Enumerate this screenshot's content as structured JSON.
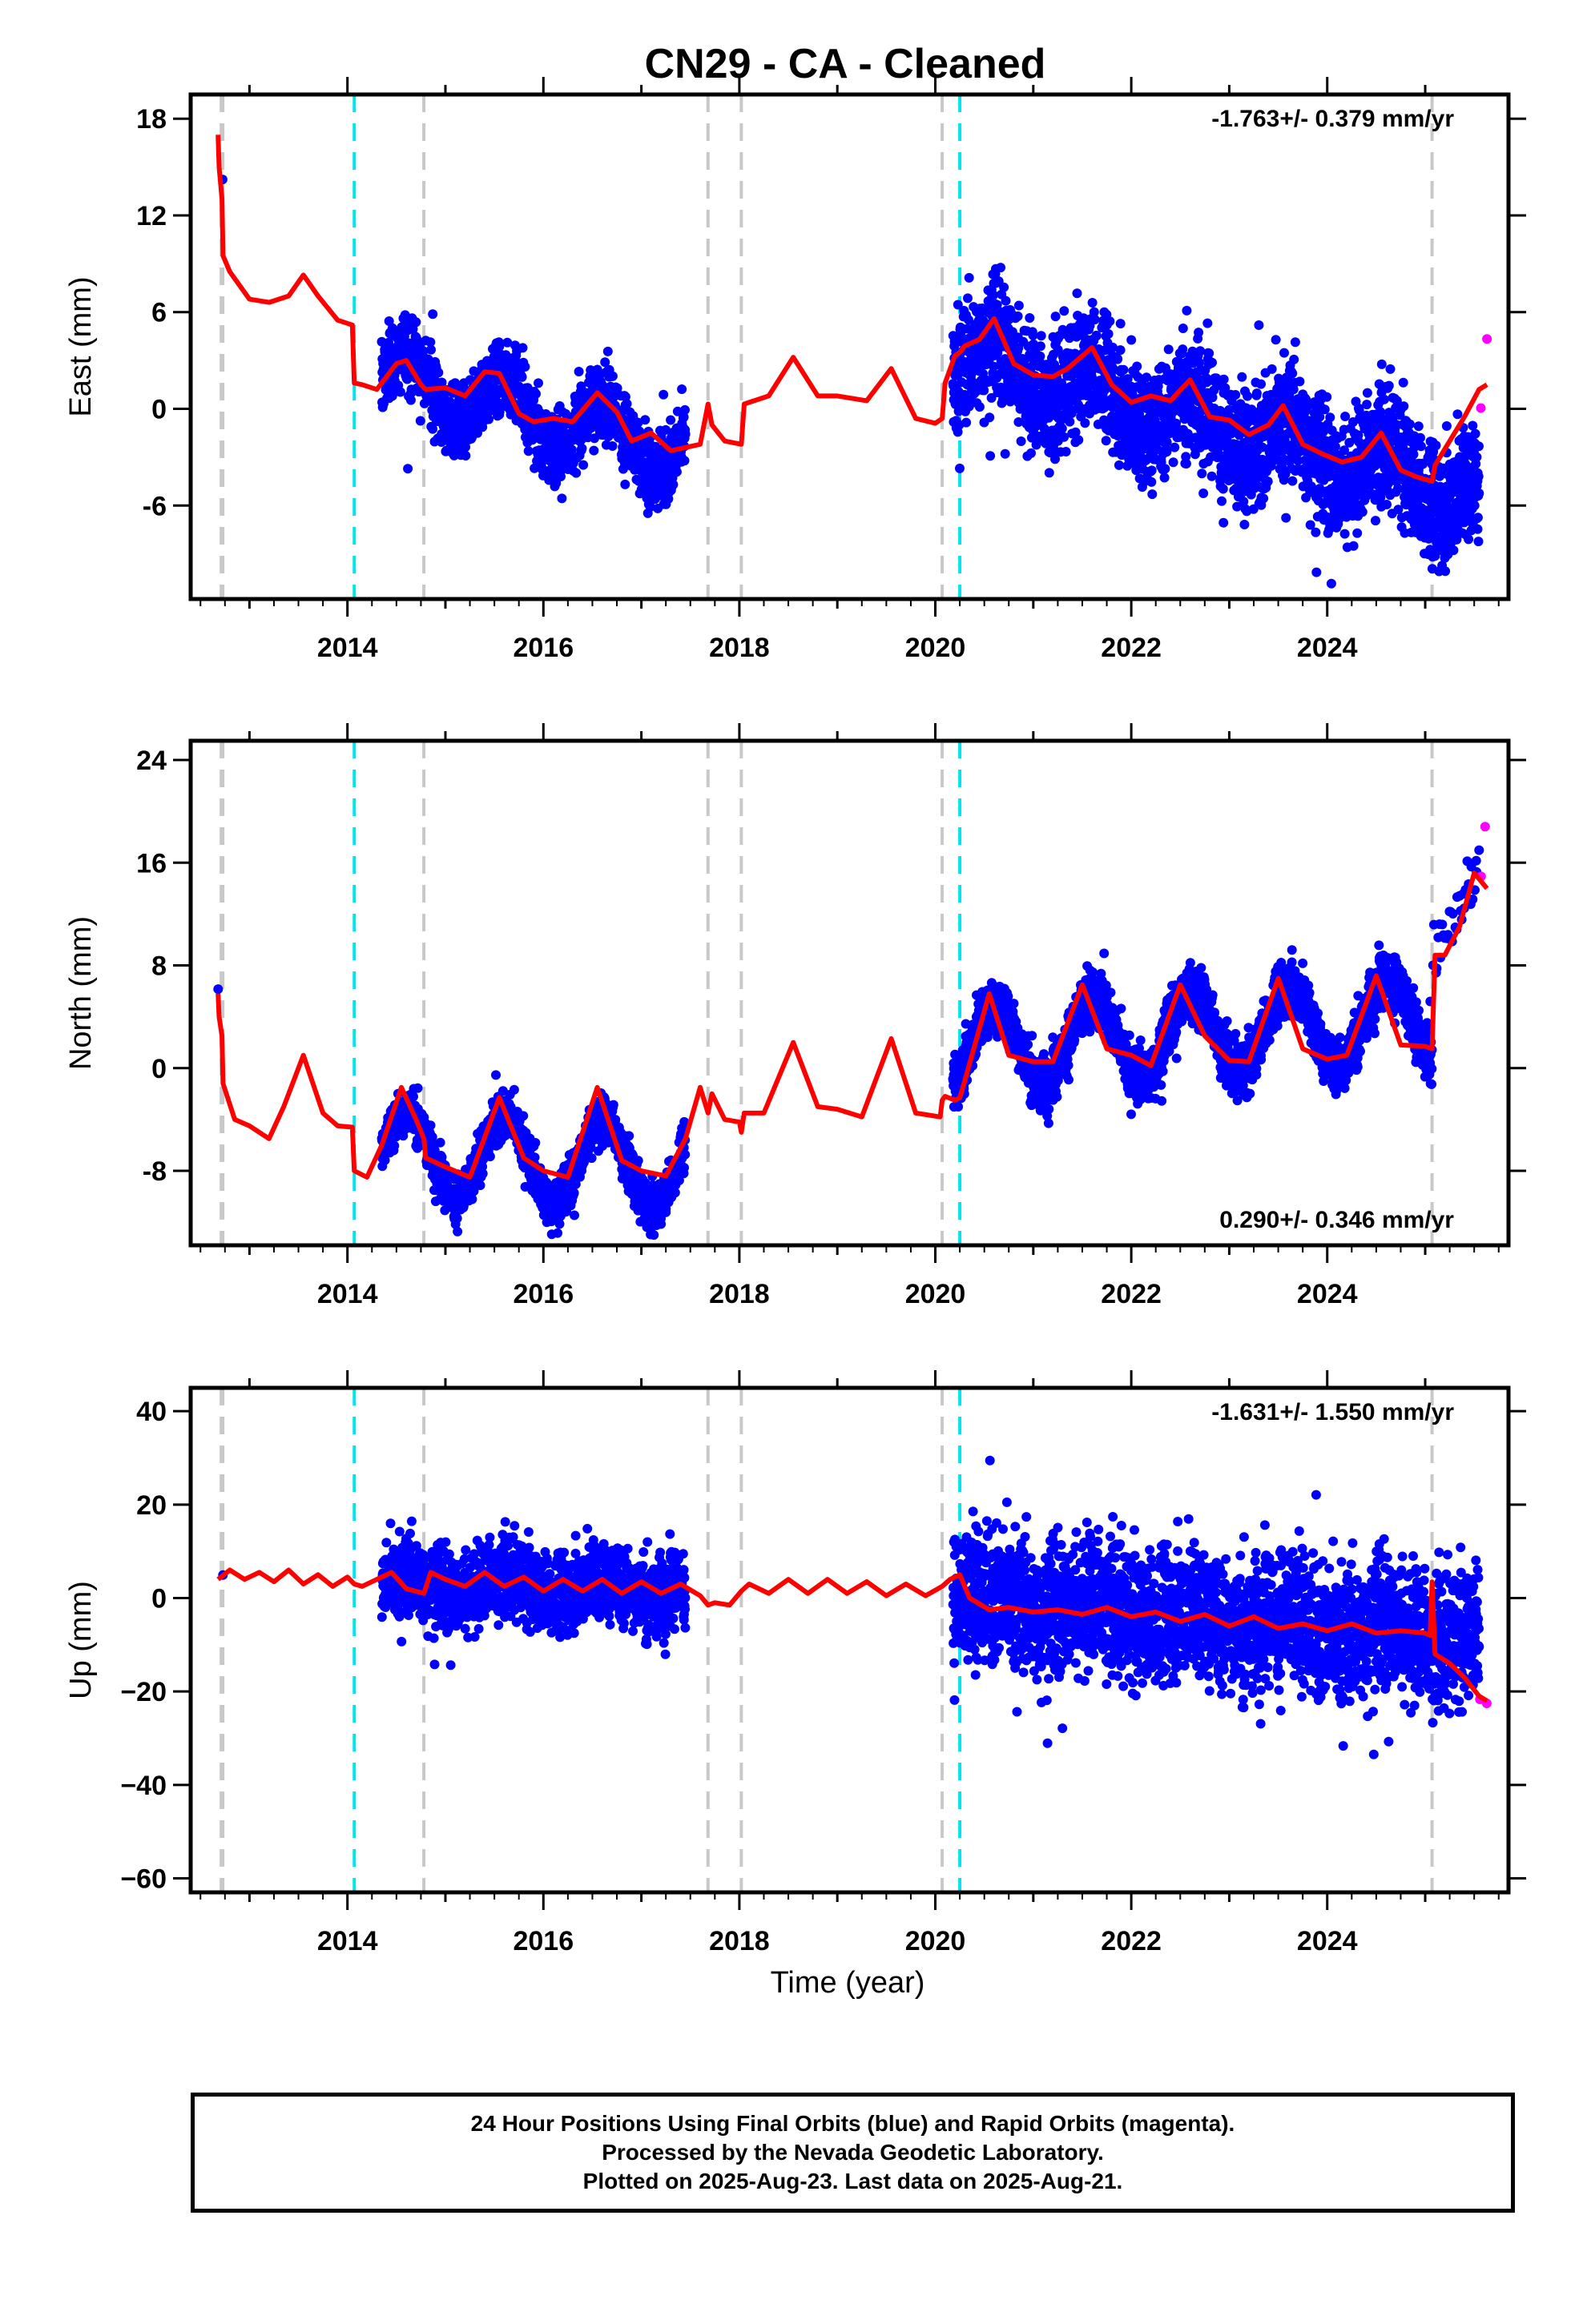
{
  "title": "CN29  - CA - Cleaned",
  "x_axis_label": "Time (year)",
  "caption": {
    "line1": "24 Hour Positions Using Final Orbits (blue) and Rapid Orbits (magenta).",
    "line2": "Processed by the Nevada Geodetic Laboratory.",
    "line3": "Plotted on 2025-Aug-23. Last data on 2025-Aug-21."
  },
  "colors": {
    "final_orbits": "#0000ff",
    "rapid_orbits": "#ff00ff",
    "model": "#ff0000",
    "equipment_change": "#c8c8c8",
    "earthquake": "#00e5ee"
  },
  "chart_data": [
    {
      "type": "scatter",
      "panel": "east",
      "ylabel": "East (mm)",
      "rate_text": "-1.763+/- 0.379 mm/yr",
      "rate_position": "top-right",
      "xlim": [
        2012.4,
        2025.85
      ],
      "ylim": [
        -11.8,
        19.5
      ],
      "xticks": [
        2014,
        2016,
        2018,
        2020,
        2022,
        2024
      ],
      "xtick_labels": [
        "2014",
        "2016",
        "2018",
        "2020",
        "2022",
        "2024"
      ],
      "yticks": [
        -6,
        0,
        6,
        12,
        18
      ],
      "ytick_labels": [
        "-6",
        "0",
        "6",
        "12",
        "18"
      ],
      "grid": false,
      "equipment_change_lines": [
        2012.72,
        2014.78,
        2017.68,
        2018.02,
        2020.07,
        2025.07
      ],
      "earthquake_lines": [
        2014.07,
        2020.25
      ],
      "segments": [
        {
          "t0": 2012.68,
          "t1": 2012.75,
          "offset": 17.0,
          "trend": -80,
          "amp": 0,
          "density": 8,
          "noise": 1.2,
          "rapid": false
        },
        {
          "t0": 2014.35,
          "t1": 2017.45,
          "offset": 2.0,
          "trend": -1.5,
          "amp": 1.8,
          "phase": 0.55,
          "density": 480,
          "noise": 1.6,
          "rapid": false
        },
        {
          "t0": 2020.18,
          "t1": 2025.55,
          "offset": 3.5,
          "trend": -1.65,
          "amp": 1.5,
          "phase": 0.55,
          "density": 520,
          "noise": 2.6,
          "rapid": false
        },
        {
          "t0": 2025.55,
          "t1": 2025.63,
          "offset": 2.0,
          "trend": 0,
          "amp": 0,
          "density": 25,
          "noise": 2.8,
          "rapid": true
        }
      ],
      "model_line": {
        "x": [
          2012.68,
          2012.69,
          2012.72,
          2012.73,
          2012.8,
          2013.0,
          2013.2,
          2013.4,
          2013.55,
          2013.7,
          2013.9,
          2014.05,
          2014.07,
          2014.15,
          2014.3,
          2014.5,
          2014.6,
          2014.75,
          2014.8,
          2015.0,
          2015.2,
          2015.4,
          2015.55,
          2015.75,
          2015.9,
          2016.1,
          2016.3,
          2016.55,
          2016.75,
          2016.9,
          2017.1,
          2017.3,
          2017.45,
          2017.6,
          2017.68,
          2017.72,
          2017.85,
          2018.02,
          2018.05,
          2018.3,
          2018.55,
          2018.8,
          2019.0,
          2019.3,
          2019.55,
          2019.8,
          2020.0,
          2020.07,
          2020.1,
          2020.2,
          2020.25,
          2020.3,
          2020.45,
          2020.6,
          2020.8,
          2021.0,
          2021.2,
          2021.35,
          2021.6,
          2021.8,
          2022.0,
          2022.2,
          2022.4,
          2022.6,
          2022.8,
          2023.0,
          2023.2,
          2023.4,
          2023.55,
          2023.75,
          2023.95,
          2024.15,
          2024.35,
          2024.55,
          2024.75,
          2024.9,
          2025.07,
          2025.1,
          2025.25,
          2025.4,
          2025.55,
          2025.63
        ],
        "y": [
          17.0,
          15.0,
          13.0,
          9.5,
          8.5,
          6.8,
          6.6,
          7.0,
          8.3,
          7.0,
          5.5,
          5.2,
          1.6,
          1.5,
          1.2,
          2.8,
          3.0,
          1.5,
          1.2,
          1.3,
          0.8,
          2.3,
          2.2,
          -0.3,
          -0.8,
          -0.6,
          -0.8,
          1.0,
          -0.2,
          -2.0,
          -1.5,
          -2.6,
          -2.4,
          -2.2,
          0.3,
          -1.0,
          -2.0,
          -2.2,
          0.3,
          0.8,
          3.2,
          0.8,
          0.8,
          0.5,
          2.5,
          -0.6,
          -0.9,
          -0.6,
          1.6,
          3.3,
          3.5,
          3.9,
          4.3,
          5.6,
          2.8,
          2.1,
          2.0,
          2.5,
          3.8,
          1.5,
          0.4,
          0.8,
          0.5,
          1.8,
          -0.5,
          -0.7,
          -1.6,
          -1.0,
          0.2,
          -2.2,
          -2.8,
          -3.3,
          -3.0,
          -1.5,
          -3.8,
          -4.2,
          -4.5,
          -3.5,
          -2.0,
          -0.5,
          1.2,
          1.5
        ]
      }
    },
    {
      "type": "scatter",
      "panel": "north",
      "ylabel": "North (mm)",
      "rate_text": "0.290+/- 0.346 mm/yr",
      "rate_position": "bottom-right",
      "xlim": [
        2012.4,
        2025.85
      ],
      "ylim": [
        -13.8,
        25.5
      ],
      "xticks": [
        2014,
        2016,
        2018,
        2020,
        2022,
        2024
      ],
      "xtick_labels": [
        "2014",
        "2016",
        "2018",
        "2020",
        "2022",
        "2024"
      ],
      "yticks": [
        -8,
        0,
        8,
        16,
        24
      ],
      "ytick_labels": [
        "-8",
        "0",
        "8",
        "16",
        "24"
      ],
      "grid": false,
      "equipment_change_lines": [
        2012.72,
        2014.78,
        2017.68,
        2018.02,
        2020.07,
        2025.07
      ],
      "earthquake_lines": [
        2014.07,
        2020.25
      ],
      "segments": [
        {
          "t0": 2012.68,
          "t1": 2012.75,
          "offset": 5.5,
          "trend": 0,
          "amp": 0,
          "density": 8,
          "noise": 1.0,
          "rapid": false
        },
        {
          "t0": 2014.35,
          "t1": 2017.45,
          "offset": -6.5,
          "trend": -0.4,
          "amp": 3.3,
          "phase": 0.55,
          "density": 480,
          "noise": 1.3,
          "rapid": false
        },
        {
          "t0": 2020.18,
          "t1": 2025.07,
          "offset": 1.5,
          "trend": 0.5,
          "amp": 3.2,
          "phase": 0.55,
          "density": 520,
          "noise": 1.5,
          "rapid": false
        },
        {
          "t0": 2025.07,
          "t1": 2025.55,
          "offset": 9.0,
          "trend": 14,
          "amp": 0,
          "density": 70,
          "noise": 1.4,
          "rapid": false
        },
        {
          "t0": 2025.55,
          "t1": 2025.63,
          "offset": 17.5,
          "trend": 0,
          "amp": 0,
          "density": 25,
          "noise": 3.0,
          "rapid": true
        }
      ],
      "model_line": {
        "x": [
          2012.68,
          2012.69,
          2012.72,
          2012.73,
          2012.85,
          2013.0,
          2013.2,
          2013.35,
          2013.55,
          2013.75,
          2013.9,
          2014.05,
          2014.07,
          2014.2,
          2014.35,
          2014.55,
          2014.7,
          2014.78,
          2014.8,
          2015.0,
          2015.25,
          2015.55,
          2015.8,
          2016.0,
          2016.25,
          2016.55,
          2016.8,
          2017.0,
          2017.25,
          2017.45,
          2017.6,
          2017.68,
          2017.72,
          2017.85,
          2018.0,
          2018.02,
          2018.05,
          2018.25,
          2018.55,
          2018.8,
          2019.0,
          2019.25,
          2019.55,
          2019.8,
          2020.05,
          2020.07,
          2020.1,
          2020.2,
          2020.25,
          2020.3,
          2020.55,
          2020.75,
          2021.0,
          2021.2,
          2021.5,
          2021.75,
          2022.0,
          2022.2,
          2022.5,
          2022.75,
          2023.0,
          2023.2,
          2023.5,
          2023.75,
          2024.0,
          2024.2,
          2024.5,
          2024.75,
          2025.0,
          2025.07,
          2025.1,
          2025.2,
          2025.35,
          2025.5,
          2025.63
        ],
        "y": [
          5.8,
          4.0,
          2.5,
          -1.2,
          -4.0,
          -4.5,
          -5.5,
          -3.0,
          1.0,
          -3.5,
          -4.5,
          -4.6,
          -8.0,
          -8.5,
          -6.0,
          -1.5,
          -4.0,
          -5.5,
          -7.0,
          -7.7,
          -8.5,
          -2.3,
          -7.0,
          -8.0,
          -8.5,
          -1.5,
          -7.2,
          -8.0,
          -8.4,
          -5.5,
          -1.5,
          -3.5,
          -2.0,
          -4.0,
          -4.2,
          -5.0,
          -3.5,
          -3.5,
          2.0,
          -3.0,
          -3.2,
          -3.8,
          2.3,
          -3.5,
          -3.8,
          -2.5,
          -2.2,
          -2.5,
          -2.3,
          -1.0,
          5.8,
          1.0,
          0.5,
          0.5,
          6.5,
          1.5,
          1.0,
          0.2,
          6.5,
          2.5,
          0.6,
          0.5,
          7.0,
          1.5,
          0.7,
          1.0,
          7.2,
          1.8,
          1.7,
          1.5,
          8.8,
          8.8,
          11.0,
          15.2,
          14.0
        ]
      }
    },
    {
      "type": "scatter",
      "panel": "up",
      "ylabel": "Up (mm)",
      "rate_text": "-1.631+/- 1.550 mm/yr",
      "rate_position": "top-right",
      "xlim": [
        2012.4,
        2025.85
      ],
      "ylim": [
        -63,
        45
      ],
      "xticks": [
        2014,
        2016,
        2018,
        2020,
        2022,
        2024
      ],
      "xtick_labels": [
        "2014",
        "2016",
        "2018",
        "2020",
        "2022",
        "2024"
      ],
      "yticks": [
        -60,
        -40,
        -20,
        0,
        20,
        40
      ],
      "ytick_labels": [
        "−60",
        "−40",
        "−20",
        "0",
        "20",
        "40"
      ],
      "grid": false,
      "equipment_change_lines": [
        2012.72,
        2014.78,
        2017.68,
        2018.02,
        2020.07,
        2025.07
      ],
      "earthquake_lines": [
        2014.07,
        2020.25
      ],
      "segments": [
        {
          "t0": 2012.68,
          "t1": 2012.75,
          "offset": 4.0,
          "trend": 0,
          "amp": 0,
          "density": 8,
          "noise": 5.0,
          "rapid": false
        },
        {
          "t0": 2014.35,
          "t1": 2017.45,
          "offset": 3.0,
          "trend": -0.3,
          "amp": 2.0,
          "phase": 0.55,
          "density": 480,
          "noise": 6.0,
          "rapid": false
        },
        {
          "t0": 2020.18,
          "t1": 2025.55,
          "offset": 0.0,
          "trend": -1.6,
          "amp": 1.8,
          "phase": 0.55,
          "density": 520,
          "noise": 10.0,
          "rapid": false
        },
        {
          "t0": 2025.55,
          "t1": 2025.63,
          "offset": -25.0,
          "trend": 0,
          "amp": 0,
          "density": 25,
          "noise": 10.0,
          "rapid": true
        }
      ],
      "model_line": {
        "x": [
          2012.68,
          2012.8,
          2012.95,
          2013.1,
          2013.25,
          2013.4,
          2013.55,
          2013.7,
          2013.85,
          2014.0,
          2014.07,
          2014.15,
          2014.3,
          2014.45,
          2014.6,
          2014.78,
          2014.85,
          2015.0,
          2015.2,
          2015.4,
          2015.6,
          2015.8,
          2016.0,
          2016.2,
          2016.4,
          2016.6,
          2016.8,
          2017.0,
          2017.2,
          2017.4,
          2017.6,
          2017.68,
          2017.75,
          2017.9,
          2018.02,
          2018.1,
          2018.3,
          2018.5,
          2018.7,
          2018.9,
          2019.1,
          2019.3,
          2019.5,
          2019.7,
          2019.9,
          2020.07,
          2020.15,
          2020.25,
          2020.35,
          2020.55,
          2020.75,
          2021.0,
          2021.25,
          2021.5,
          2021.75,
          2022.0,
          2022.25,
          2022.5,
          2022.75,
          2023.0,
          2023.25,
          2023.5,
          2023.75,
          2024.0,
          2024.25,
          2024.5,
          2024.75,
          2025.0,
          2025.05,
          2025.07,
          2025.1,
          2025.25,
          2025.4,
          2025.55,
          2025.63
        ],
        "y": [
          4.0,
          6.0,
          4.0,
          5.5,
          3.5,
          6.0,
          3.0,
          5.0,
          2.5,
          4.5,
          3.0,
          2.5,
          4.0,
          5.5,
          2.0,
          1.0,
          5.5,
          4.0,
          2.5,
          5.5,
          2.5,
          4.5,
          1.5,
          4.0,
          1.5,
          4.0,
          1.0,
          3.5,
          1.0,
          3.0,
          0.5,
          -1.5,
          -1.0,
          -1.5,
          1.5,
          3.0,
          1.0,
          4.0,
          1.0,
          4.0,
          1.0,
          3.5,
          0.5,
          3.0,
          0.5,
          2.5,
          4.0,
          5.0,
          0.0,
          -2.5,
          -2.0,
          -3.0,
          -2.5,
          -3.5,
          -2.0,
          -4.0,
          -3.0,
          -5.0,
          -3.5,
          -6.0,
          -4.0,
          -6.5,
          -5.5,
          -7.0,
          -5.5,
          -7.5,
          -7.0,
          -7.5,
          -8.0,
          3.5,
          -12.0,
          -14.0,
          -17.0,
          -21.0,
          -22.0
        ]
      }
    }
  ]
}
